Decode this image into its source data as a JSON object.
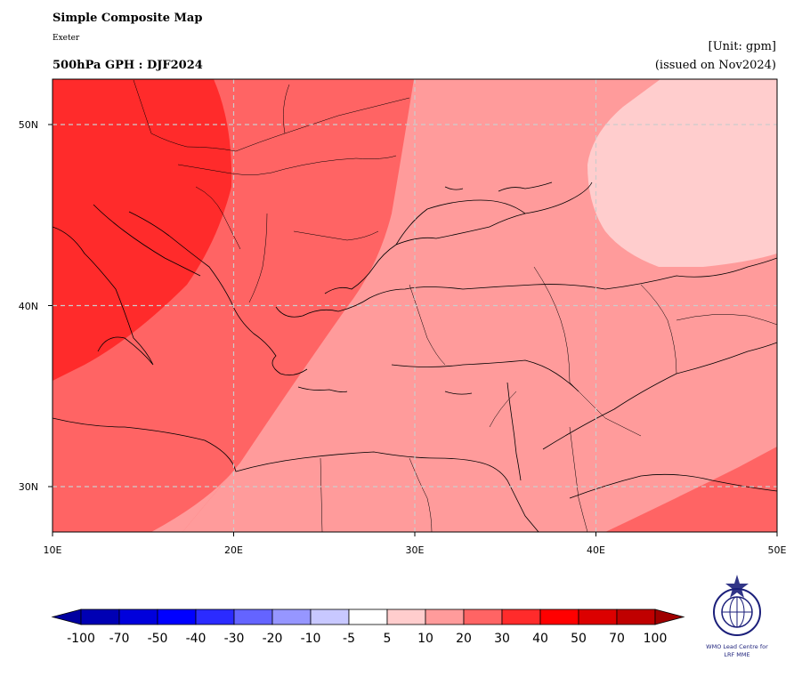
{
  "header": {
    "title": "Simple Composite Map",
    "subtitle": "Exeter",
    "variable_title": "500hPa GPH : DJF2024",
    "unit": "[Unit: gpm]",
    "issued": "(issued on Nov2024)"
  },
  "map": {
    "lat_labels": [
      "50N",
      "40N",
      "30N"
    ],
    "lon_labels": [
      "10E",
      "20E",
      "30E",
      "40E",
      "50E"
    ],
    "lon_range": [
      10,
      50
    ],
    "lat_range": [
      27.5,
      52.5
    ]
  },
  "colorbar": {
    "labels": [
      "-100",
      "-70",
      "-50",
      "-40",
      "-30",
      "-20",
      "-10",
      "-5",
      "5",
      "10",
      "20",
      "30",
      "40",
      "50",
      "70",
      "100"
    ],
    "colors": [
      "#0000b4",
      "#0000dc",
      "#0000ff",
      "#2b2bff",
      "#6464ff",
      "#9696ff",
      "#c8c8ff",
      "#ffffff",
      "#ffcdcd",
      "#ff9b9b",
      "#ff6464",
      "#ff2b2b",
      "#ff0000",
      "#dc0000",
      "#c00000"
    ],
    "under_color": "#0000a0",
    "over_color": "#a00000"
  },
  "logo": {
    "line1": "WMO Lead Centre for",
    "line2": "LRF MME"
  }
}
